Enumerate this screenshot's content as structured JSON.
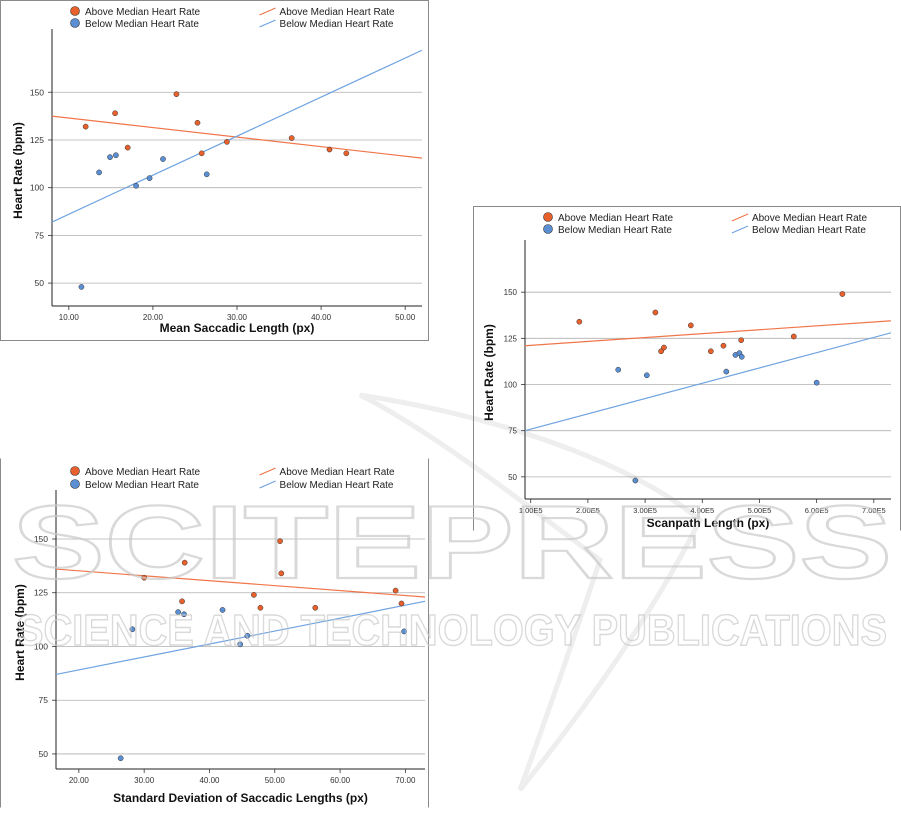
{
  "legend": {
    "above_points": "Above Median Heart Rate",
    "below_points": "Below Median Heart Rate",
    "above_line": "Above Median Heart Rate",
    "below_line": "Below Median Heart Rate"
  },
  "colors": {
    "above": "#E8602C",
    "below": "#5B8FD4",
    "above_line": "#F0764A",
    "below_line": "#6FA3E0",
    "grid": "#b0b0b0"
  },
  "watermark": {
    "line1": "SCITEPRESS",
    "line2": "SCIENCE AND TECHNOLOGY PUBLICATIONS"
  },
  "chart_data": [
    {
      "type": "scatter",
      "xlabel": "Mean Saccadic Length (px)",
      "ylabel": "Heart Rate (bpm)",
      "xlim": [
        8,
        52
      ],
      "ylim": [
        38,
        180
      ],
      "xticks": [
        "10.00",
        "20.00",
        "30.00",
        "40.00",
        "50.00"
      ],
      "xtick_values": [
        10,
        20,
        30,
        40,
        50
      ],
      "yticks": [
        50,
        75,
        100,
        125,
        150
      ],
      "grid": "horizontal",
      "series": [
        {
          "name": "Above Median Heart Rate",
          "points": [
            [
              12.0,
              132
            ],
            [
              15.5,
              139
            ],
            [
              17.0,
              121
            ],
            [
              22.8,
              149
            ],
            [
              25.3,
              134
            ],
            [
              25.8,
              118
            ],
            [
              28.8,
              124
            ],
            [
              36.5,
              126
            ],
            [
              41.0,
              120
            ],
            [
              43.0,
              118
            ]
          ],
          "fit": [
            [
              8,
              137.5
            ],
            [
              52,
              115.5
            ]
          ]
        },
        {
          "name": "Below Median Heart Rate",
          "points": [
            [
              11.5,
              48
            ],
            [
              13.6,
              108
            ],
            [
              14.9,
              116
            ],
            [
              15.6,
              117
            ],
            [
              18.0,
              101
            ],
            [
              19.6,
              105
            ],
            [
              21.2,
              115
            ],
            [
              26.4,
              107
            ]
          ],
          "fit": [
            [
              8,
              82
            ],
            [
              52,
              172
            ]
          ]
        }
      ]
    },
    {
      "type": "scatter",
      "xlabel": "Scanpath Length (px)",
      "ylabel": "Heart Rate (bpm)",
      "xlim": [
        0.9,
        7.3
      ],
      "ylim": [
        38,
        175
      ],
      "xticks": [
        "1.00E5",
        "2.00E5",
        "3.00E5",
        "4.00E5",
        "5.00E5",
        "6.00E5",
        "7.00E5"
      ],
      "xtick_values": [
        1,
        2,
        3,
        4,
        5,
        6,
        7
      ],
      "yticks": [
        50,
        75,
        100,
        125,
        150
      ],
      "grid": "horizontal",
      "series": [
        {
          "name": "Above Median Heart Rate",
          "points": [
            [
              1.85,
              134
            ],
            [
              3.18,
              139
            ],
            [
              3.28,
              118
            ],
            [
              3.33,
              120
            ],
            [
              3.8,
              132
            ],
            [
              4.15,
              118
            ],
            [
              4.37,
              121
            ],
            [
              4.68,
              124
            ],
            [
              5.6,
              126
            ],
            [
              6.45,
              149
            ]
          ],
          "fit": [
            [
              0.9,
              121
            ],
            [
              7.3,
              134.5
            ]
          ]
        },
        {
          "name": "Below Median Heart Rate",
          "points": [
            [
              2.53,
              108
            ],
            [
              2.83,
              48
            ],
            [
              3.03,
              105
            ],
            [
              4.42,
              107
            ],
            [
              4.58,
              116
            ],
            [
              4.65,
              117
            ],
            [
              4.69,
              115
            ],
            [
              6.0,
              101
            ]
          ],
          "fit": [
            [
              0.9,
              75
            ],
            [
              7.3,
              128
            ]
          ]
        }
      ]
    },
    {
      "type": "scatter",
      "xlabel": "Standard Deviation of Saccadic Lengths (px)",
      "ylabel": "Heart Rate (bpm)",
      "xlim": [
        16.5,
        73
      ],
      "ylim": [
        43,
        170
      ],
      "xticks": [
        "20.00",
        "30.00",
        "40.00",
        "50.00",
        "60.00",
        "70.00"
      ],
      "xtick_values": [
        20,
        30,
        40,
        50,
        60,
        70
      ],
      "yticks": [
        50,
        75,
        100,
        125,
        150
      ],
      "grid": "horizontal",
      "series": [
        {
          "name": "Above Median Heart Rate",
          "points": [
            [
              30.0,
              132
            ],
            [
              35.8,
              121
            ],
            [
              36.2,
              139
            ],
            [
              46.8,
              124
            ],
            [
              47.8,
              118
            ],
            [
              50.8,
              149
            ],
            [
              51.0,
              134
            ],
            [
              56.2,
              118
            ],
            [
              68.5,
              126
            ],
            [
              69.4,
              120
            ]
          ],
          "fit": [
            [
              16.5,
              136
            ],
            [
              73,
              123
            ]
          ]
        },
        {
          "name": "Below Median Heart Rate",
          "points": [
            [
              26.4,
              48
            ],
            [
              28.2,
              108
            ],
            [
              35.2,
              116
            ],
            [
              36.1,
              115
            ],
            [
              42.0,
              117
            ],
            [
              44.7,
              101
            ],
            [
              45.8,
              105
            ],
            [
              69.8,
              107
            ]
          ],
          "fit": [
            [
              16.5,
              87
            ],
            [
              73,
              121
            ]
          ]
        }
      ]
    }
  ]
}
